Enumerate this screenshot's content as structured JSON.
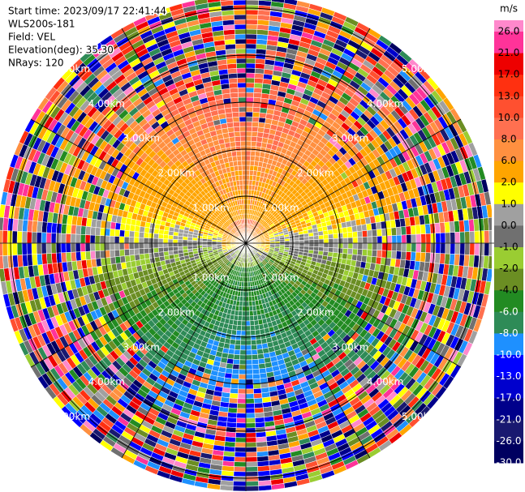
{
  "header": {
    "lines": [
      "Start time: 2023/09/17 22:41:44",
      "WLS200s-181",
      "Field: VEL",
      "Elevation(deg): 35.30",
      "NRays: 120"
    ]
  },
  "range_rings": [
    "1.00km",
    "2.00km",
    "3.00km",
    "4.00km",
    "5.00km"
  ],
  "colorbar": {
    "unit": "m/s",
    "ticks": [
      {
        "value": 26,
        "label": "26.0"
      },
      {
        "value": 21,
        "label": "21.0"
      },
      {
        "value": 17,
        "label": "17.0"
      },
      {
        "value": 13,
        "label": "13.0"
      },
      {
        "value": 10,
        "label": "10.0"
      },
      {
        "value": 8,
        "label": "8.0"
      },
      {
        "value": 6,
        "label": "6.0"
      },
      {
        "value": 2,
        "label": "2.0"
      },
      {
        "value": 1,
        "label": "1.0"
      },
      {
        "value": 0,
        "label": "0.0"
      },
      {
        "value": -1,
        "label": "-1.0"
      },
      {
        "value": -2,
        "label": "-2.0"
      },
      {
        "value": -4,
        "label": "-4.0"
      },
      {
        "value": -6,
        "label": "-6.0"
      },
      {
        "value": -8,
        "label": "-8.0"
      },
      {
        "value": -10,
        "label": "-10.0"
      },
      {
        "value": -13,
        "label": "-13.0"
      },
      {
        "value": -17,
        "label": "-17.0"
      },
      {
        "value": -21,
        "label": "-21.0"
      },
      {
        "value": -26,
        "label": "-26.0"
      },
      {
        "value": -30,
        "label": "-30.0"
      }
    ],
    "colors": [
      "#ff88cc",
      "#ff3399",
      "#ee0000",
      "#ff3010",
      "#ff5030",
      "#ff7050",
      "#ff9040",
      "#ffa500",
      "#ffff00",
      "#a0a0a0",
      "#707070",
      "#9acd32",
      "#6b8e23",
      "#228b22",
      "#2e8b57",
      "#1e90ff",
      "#0000ff",
      "#0000cd",
      "#00008b",
      "#191970",
      "#000060"
    ]
  }
}
